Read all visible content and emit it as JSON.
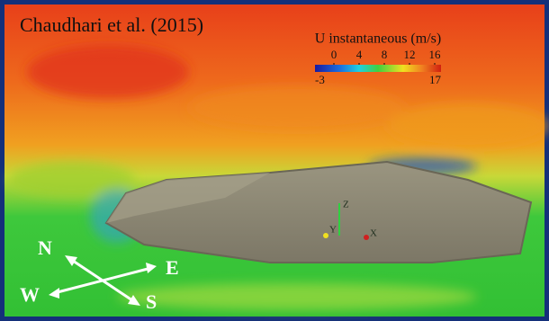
{
  "title": "Chaudhari  et al. (2015)",
  "colorbar": {
    "label": "U instantaneous (m/s)",
    "range": [
      -3,
      17
    ],
    "ticks": [
      0,
      4,
      8,
      12,
      16
    ]
  },
  "axes_triad": {
    "z": "Z",
    "y": "Y",
    "x": "X"
  },
  "compass": {
    "n": "N",
    "e": "E",
    "w": "W",
    "s": "S"
  }
}
